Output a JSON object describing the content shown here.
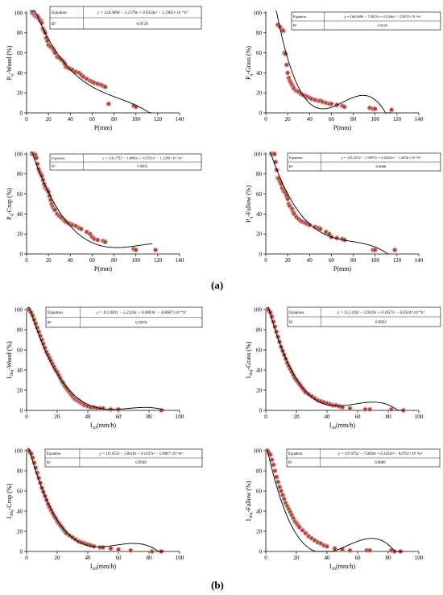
{
  "panel_labels": {
    "a": "(a)",
    "b": "(b)"
  },
  "colors": {
    "point": "#c8323a",
    "point_border": "#6b8e23",
    "halo": "#f4a0d0",
    "curve": "#000000",
    "box_border": "#000000"
  },
  "chart_data": [
    {
      "type": "scatter",
      "ylabel": "Pq-Wood (%)",
      "ylabel_main": "P",
      "ylabel_sub": "q",
      "ylabel_rest": "-Wood (%)",
      "xlabel": "P(mm)",
      "xlim": [
        0,
        140
      ],
      "ylim": [
        0,
        100
      ],
      "xticks": [
        0,
        20,
        40,
        60,
        80,
        100,
        120,
        140
      ],
      "yticks": [
        0,
        20,
        40,
        60,
        80,
        100
      ],
      "equation_label": "Equation",
      "equation": "y = 124.3894 − 3.1179x + 0.0324x² − 1.2902×10⁻⁴x³",
      "r2_label": "R²",
      "r2": "0.9728",
      "coefficients": [
        124.3894,
        -3.1179,
        0.0324,
        -0.00012902
      ],
      "curve_x": [
        3,
        115
      ],
      "x": [
        5,
        6,
        7,
        8,
        9,
        10,
        11,
        12,
        13,
        14,
        15,
        16,
        17,
        18,
        19,
        20,
        22,
        24,
        25,
        26,
        28,
        30,
        32,
        34,
        35,
        36,
        38,
        40,
        42,
        45,
        48,
        50,
        52,
        55,
        58,
        60,
        62,
        65,
        68,
        70,
        72,
        75,
        98,
        100
      ],
      "y": [
        100,
        100,
        98,
        97,
        96,
        97,
        95,
        93,
        92,
        90,
        84,
        82,
        80,
        75,
        72,
        68,
        66,
        64,
        62,
        60,
        56,
        55,
        53,
        51,
        49,
        46,
        45,
        44,
        43,
        41,
        40,
        38,
        36,
        34,
        32,
        31,
        30,
        29,
        28,
        27,
        26,
        9,
        7,
        6
      ]
    },
    {
      "type": "scatter",
      "ylabel": "Pq-Grass (%)",
      "ylabel_main": "P",
      "ylabel_sub": "q",
      "ylabel_rest": "-Grass (%)",
      "xlabel": "P(mm)",
      "xlim": [
        0,
        140
      ],
      "ylim": [
        0,
        100
      ],
      "xticks": [
        0,
        20,
        40,
        60,
        80,
        100,
        120,
        140
      ],
      "yticks": [
        0,
        20,
        40,
        60,
        80,
        100
      ],
      "equation_label": "Equation",
      "equation": "y = 166.0696 − 7.6923x + 0.1166x² − 5.4974×10⁻⁴x³",
      "r2_label": "R²",
      "r2": "0.9128",
      "coefficients": [
        166.0696,
        -7.6923,
        0.1166,
        -0.00054974
      ],
      "curve_x": [
        9,
        115
      ],
      "x": [
        11,
        13,
        15,
        16,
        17,
        18,
        19,
        20,
        21,
        22,
        23,
        24,
        25,
        26,
        28,
        30,
        32,
        34,
        36,
        38,
        40,
        42,
        45,
        48,
        50,
        52,
        55,
        58,
        60,
        65,
        70,
        72,
        95,
        98,
        100,
        115
      ],
      "y": [
        88,
        86,
        83,
        82,
        60,
        59,
        48,
        40,
        35,
        32,
        30,
        28,
        26,
        24,
        22,
        21,
        19,
        18,
        17,
        16,
        15,
        14,
        13,
        12,
        12,
        11,
        10,
        9,
        9,
        8,
        7,
        6,
        5,
        4,
        4,
        3
      ]
    },
    {
      "type": "scatter",
      "ylabel": "Pq-Crop (%)",
      "ylabel_main": "P",
      "ylabel_sub": "q",
      "ylabel_rest": "-Crop (%)",
      "xlabel": "P(mm)",
      "xlim": [
        0,
        140
      ],
      "ylim": [
        0,
        100
      ],
      "xticks": [
        0,
        20,
        40,
        60,
        80,
        100,
        120,
        140
      ],
      "yticks": [
        0,
        20,
        40,
        60,
        80,
        100
      ],
      "equation_label": "Equation",
      "equation": "y = 118.3755 − 3.4849x + 0.0351x² − 1.1280×10⁻⁴x³",
      "r2_label": "R²",
      "r2": "0.9682",
      "coefficients": [
        118.3755,
        -3.4849,
        0.0351,
        -0.0001128
      ],
      "curve_x": [
        4,
        115
      ],
      "x": [
        5,
        6,
        7,
        8,
        9,
        10,
        11,
        12,
        13,
        14,
        15,
        16,
        17,
        18,
        19,
        20,
        21,
        22,
        23,
        24,
        25,
        26,
        28,
        30,
        32,
        34,
        35,
        36,
        38,
        40,
        42,
        45,
        48,
        50,
        55,
        58,
        60,
        62,
        65,
        70,
        72,
        98,
        100,
        118
      ],
      "y": [
        100,
        100,
        100,
        99,
        96,
        90,
        85,
        82,
        80,
        78,
        74,
        70,
        67,
        65,
        64,
        62,
        58,
        54,
        50,
        47,
        45,
        44,
        40,
        38,
        36,
        34,
        33,
        32,
        31,
        30,
        29,
        28,
        26,
        25,
        22,
        20,
        17,
        15,
        14,
        13,
        12,
        5,
        4,
        4
      ]
    },
    {
      "type": "scatter",
      "ylabel": "Pq-Fallow (%)",
      "ylabel_main": "P",
      "ylabel_sub": "q",
      "ylabel_rest": "-Fallow (%)",
      "xlabel": "P(mm)",
      "xlim": [
        0,
        140
      ],
      "ylim": [
        0,
        100
      ],
      "xticks": [
        0,
        20,
        40,
        60,
        80,
        100,
        120,
        140
      ],
      "yticks": [
        0,
        20,
        40,
        60,
        80,
        100
      ],
      "equation_label": "Equation",
      "equation": "y = 116.2572 − 3.5997x + 0.0435x² − 1.8436×10⁻⁴x³",
      "r2_label": "R²",
      "r2": "0.9680",
      "coefficients": [
        116.2572,
        -3.5997,
        0.0435,
        -0.00018436
      ],
      "curve_x": [
        4,
        113
      ],
      "x": [
        5,
        6,
        7,
        8,
        9,
        10,
        11,
        12,
        13,
        14,
        15,
        16,
        17,
        18,
        19,
        20,
        21,
        22,
        24,
        25,
        26,
        28,
        30,
        32,
        34,
        36,
        38,
        40,
        45,
        48,
        50,
        55,
        58,
        60,
        65,
        70,
        72,
        98,
        100,
        118
      ],
      "y": [
        100,
        100,
        100,
        100,
        92,
        84,
        76,
        75,
        72,
        70,
        66,
        64,
        62,
        61,
        58,
        55,
        50,
        48,
        45,
        42,
        40,
        37,
        35,
        33,
        32,
        31,
        30,
        29,
        27,
        26,
        25,
        22,
        20,
        17,
        16,
        15,
        14,
        4,
        4,
        4
      ]
    },
    {
      "type": "scatter",
      "ylabel": "I30q-Wood (%)",
      "ylabel_main": "I",
      "ylabel_sub": "30q",
      "ylabel_rest": "-Wood (%)",
      "xlabel": "I30(mm/h)",
      "xlabel_main": "I",
      "xlabel_sub": "30",
      "xlabel_rest": "(mm/h)",
      "xlim": [
        0,
        100
      ],
      "ylim": [
        0,
        100
      ],
      "xticks": [
        0,
        20,
        40,
        60,
        80,
        100
      ],
      "yticks": [
        0,
        20,
        40,
        60,
        80,
        100
      ],
      "equation_label": "Equation",
      "equation": "y = 112.0031 − 5.2224x + 0.0803x² − 4.0087×10⁻⁴x³",
      "r2_label": "R²",
      "r2": "0.9976",
      "coefficients": [
        112.0031,
        -5.2224,
        0.0803,
        -0.00040087
      ],
      "curve_x": [
        1,
        90
      ],
      "x": [
        1,
        2,
        3,
        4,
        5,
        6,
        7,
        8,
        9,
        10,
        11,
        12,
        13,
        14,
        15,
        16,
        17,
        18,
        19,
        20,
        21,
        22,
        23,
        24,
        25,
        26,
        27,
        28,
        29,
        30,
        31,
        32,
        33,
        34,
        35,
        36,
        37,
        38,
        40,
        42,
        44,
        46,
        48,
        50,
        55,
        60,
        88
      ],
      "y": [
        100,
        99,
        97,
        94,
        90,
        86,
        82,
        78,
        74,
        70,
        66,
        62,
        58,
        55,
        52,
        49,
        46,
        43,
        40,
        38,
        35,
        32,
        29,
        27,
        24,
        22,
        20,
        18,
        16,
        14,
        12,
        11,
        10,
        9,
        8,
        7,
        6,
        5,
        4,
        3,
        3,
        2,
        2,
        2,
        1,
        1,
        0
      ]
    },
    {
      "type": "scatter",
      "ylabel": "I30q-Grass (%)",
      "ylabel_main": "I",
      "ylabel_sub": "30q",
      "ylabel_rest": "-Grass (%)",
      "xlabel": "I30(mm/h)",
      "xlabel_main": "I",
      "xlabel_sub": "30",
      "xlabel_rest": "(mm/h)",
      "xlim": [
        0,
        100
      ],
      "ylim": [
        0,
        100
      ],
      "xticks": [
        0,
        20,
        40,
        60,
        80,
        100
      ],
      "yticks": [
        0,
        20,
        40,
        60,
        80,
        100
      ],
      "equation_label": "Equation",
      "equation": "y = 112.3263 − 5.9310x + 0.1057x² − 6.0324×10⁻⁴x³",
      "r2_label": "R²",
      "r2": "0.9952",
      "coefficients": [
        112.3263,
        -5.931,
        0.1057,
        -0.00060324
      ],
      "curve_x": [
        1,
        90
      ],
      "x": [
        1,
        2,
        3,
        4,
        5,
        6,
        7,
        8,
        9,
        10,
        11,
        12,
        13,
        14,
        15,
        16,
        17,
        18,
        19,
        20,
        21,
        22,
        23,
        24,
        25,
        26,
        28,
        30,
        32,
        34,
        36,
        38,
        40,
        42,
        44,
        46,
        48,
        50,
        55,
        65,
        68,
        82,
        90
      ],
      "y": [
        100,
        99,
        97,
        93,
        88,
        83,
        78,
        73,
        68,
        63,
        59,
        55,
        51,
        47,
        44,
        41,
        38,
        35,
        32,
        30,
        28,
        26,
        24,
        22,
        20,
        18,
        16,
        14,
        12,
        10,
        9,
        8,
        7,
        6,
        5,
        5,
        4,
        3,
        2,
        1,
        1,
        1,
        0
      ]
    },
    {
      "type": "scatter",
      "ylabel": "I30q-Crop (%)",
      "ylabel_main": "I",
      "ylabel_sub": "30q",
      "ylabel_rest": "-Crop (%)",
      "xlabel": "I30(mm/h)",
      "xlabel_main": "I",
      "xlabel_sub": "30",
      "xlabel_rest": "(mm/h)",
      "xlim": [
        0,
        100
      ],
      "ylim": [
        0,
        100
      ],
      "xticks": [
        0,
        20,
        40,
        60,
        80,
        100
      ],
      "yticks": [
        0,
        20,
        40,
        60,
        80,
        100
      ],
      "equation_label": "Equation",
      "equation": "y = 111.4555 − 5.8418x + 0.1037x² − 5.9087×10⁻⁴x³",
      "r2_label": "R²",
      "r2": "0.9949",
      "coefficients": [
        111.4555,
        -5.8418,
        0.1037,
        -0.00059087
      ],
      "curve_x": [
        1,
        90
      ],
      "x": [
        1,
        2,
        3,
        4,
        5,
        6,
        7,
        8,
        9,
        10,
        11,
        12,
        13,
        14,
        15,
        16,
        17,
        18,
        19,
        20,
        21,
        22,
        23,
        24,
        25,
        26,
        28,
        30,
        32,
        34,
        36,
        38,
        40,
        42,
        44,
        48,
        50,
        55,
        60,
        68,
        82,
        88
      ],
      "y": [
        100,
        99,
        97,
        93,
        88,
        83,
        78,
        73,
        68,
        63,
        59,
        55,
        51,
        47,
        44,
        41,
        38,
        35,
        33,
        30,
        28,
        26,
        24,
        22,
        20,
        18,
        16,
        14,
        12,
        10,
        9,
        8,
        7,
        6,
        5,
        4,
        4,
        3,
        2,
        1,
        0,
        0
      ]
    },
    {
      "type": "scatter",
      "ylabel": "I30q-Fallow (%)",
      "ylabel_main": "I",
      "ylabel_sub": "30q",
      "ylabel_rest": "-Fallow (%)",
      "xlabel": "I30(mm/h)",
      "xlabel_main": "I",
      "xlabel_sub": "30",
      "xlabel_rest": "(mm/h)",
      "xlim": [
        0,
        100
      ],
      "ylim": [
        0,
        100
      ],
      "xticks": [
        0,
        20,
        40,
        60,
        80,
        100
      ],
      "yticks": [
        0,
        20,
        40,
        60,
        80,
        100
      ],
      "equation_label": "Equation",
      "equation": "y = 107.8752 − 7.0828x + 0.1453x² − 9.0702×10⁻⁴x³",
      "r2_label": "R²",
      "r2": "0.9808",
      "coefficients": [
        107.8752,
        -7.0828,
        0.1453,
        -0.00090702
      ],
      "curve_x": [
        1,
        90
      ],
      "x": [
        1,
        2,
        3,
        4,
        5,
        6,
        7,
        8,
        9,
        10,
        11,
        12,
        13,
        14,
        15,
        16,
        17,
        18,
        19,
        20,
        21,
        22,
        24,
        26,
        28,
        30,
        32,
        34,
        36,
        38,
        40,
        45,
        50,
        55,
        66,
        68,
        82,
        84,
        88
      ],
      "y": [
        100,
        98,
        96,
        91,
        86,
        80,
        74,
        69,
        64,
        60,
        56,
        52,
        48,
        45,
        42,
        39,
        36,
        33,
        30,
        28,
        26,
        24,
        21,
        18,
        15,
        13,
        11,
        9,
        8,
        6,
        5,
        3,
        2,
        1,
        1,
        1,
        1,
        0,
        0
      ]
    }
  ]
}
